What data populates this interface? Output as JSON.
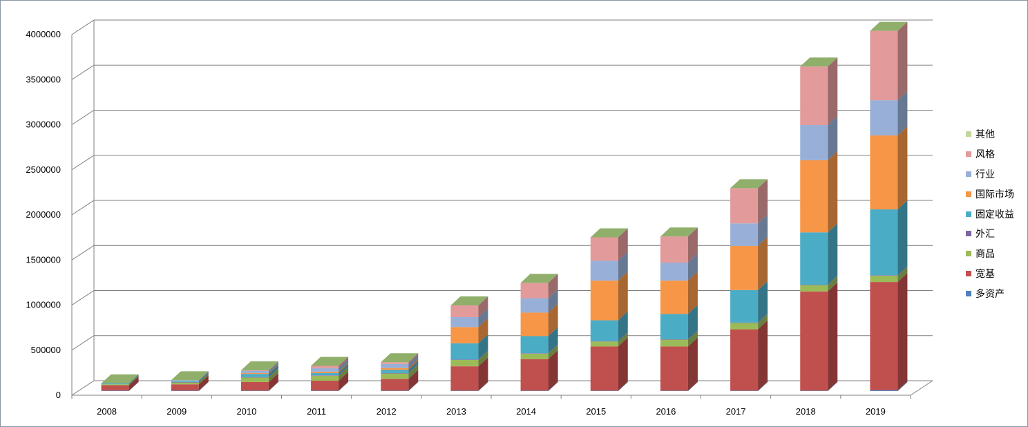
{
  "chart_data": {
    "type": "bar",
    "stacked": true,
    "three_d": true,
    "categories": [
      "2008",
      "2009",
      "2010",
      "2011",
      "2012",
      "2013",
      "2014",
      "2015",
      "2016",
      "2017",
      "2018",
      "2019"
    ],
    "y_ticks": [
      "0",
      "500000",
      "1000000",
      "1500000",
      "2000000",
      "2500000",
      "3000000",
      "3500000",
      "4000000"
    ],
    "ylim": [
      0,
      4000000
    ],
    "grid": true,
    "legend_position": "right",
    "series": [
      {
        "name": "多资产",
        "color": "#4F81BD",
        "values": [
          5000,
          5000,
          5000,
          5000,
          5000,
          5000,
          5000,
          5000,
          5000,
          5000,
          5000,
          10000
        ]
      },
      {
        "name": "宽基",
        "color": "#C0504D",
        "values": [
          60000,
          70000,
          95000,
          110000,
          130000,
          270000,
          350000,
          490000,
          490000,
          680000,
          1100000,
          1200000
        ]
      },
      {
        "name": "商品",
        "color": "#9BBB59",
        "values": [
          10000,
          20000,
          50000,
          55000,
          60000,
          70000,
          60000,
          55000,
          75000,
          70000,
          70000,
          70000
        ]
      },
      {
        "name": "外汇",
        "color": "#8064A2",
        "values": [
          0,
          5000,
          5000,
          5000,
          5000,
          5000,
          5000,
          5000,
          5000,
          5000,
          5000,
          5000
        ]
      },
      {
        "name": "固定收益",
        "color": "#4BACC6",
        "values": [
          10000,
          10000,
          35000,
          25000,
          35000,
          180000,
          190000,
          230000,
          280000,
          360000,
          580000,
          730000
        ]
      },
      {
        "name": "国际市场",
        "color": "#F79646",
        "values": [
          0,
          0,
          10000,
          15000,
          20000,
          180000,
          260000,
          440000,
          370000,
          490000,
          800000,
          820000
        ]
      },
      {
        "name": "行业",
        "color": "#98B0D8",
        "values": [
          0,
          10000,
          25000,
          40000,
          45000,
          110000,
          160000,
          220000,
          200000,
          250000,
          390000,
          390000
        ]
      },
      {
        "name": "风格",
        "color": "#E39A9A",
        "values": [
          0,
          0,
          5000,
          25000,
          20000,
          130000,
          170000,
          260000,
          290000,
          390000,
          650000,
          770000
        ]
      },
      {
        "name": "其他",
        "color": "#C4D79B",
        "values": [
          0,
          0,
          0,
          0,
          0,
          0,
          0,
          0,
          0,
          0,
          0,
          0
        ]
      }
    ]
  }
}
